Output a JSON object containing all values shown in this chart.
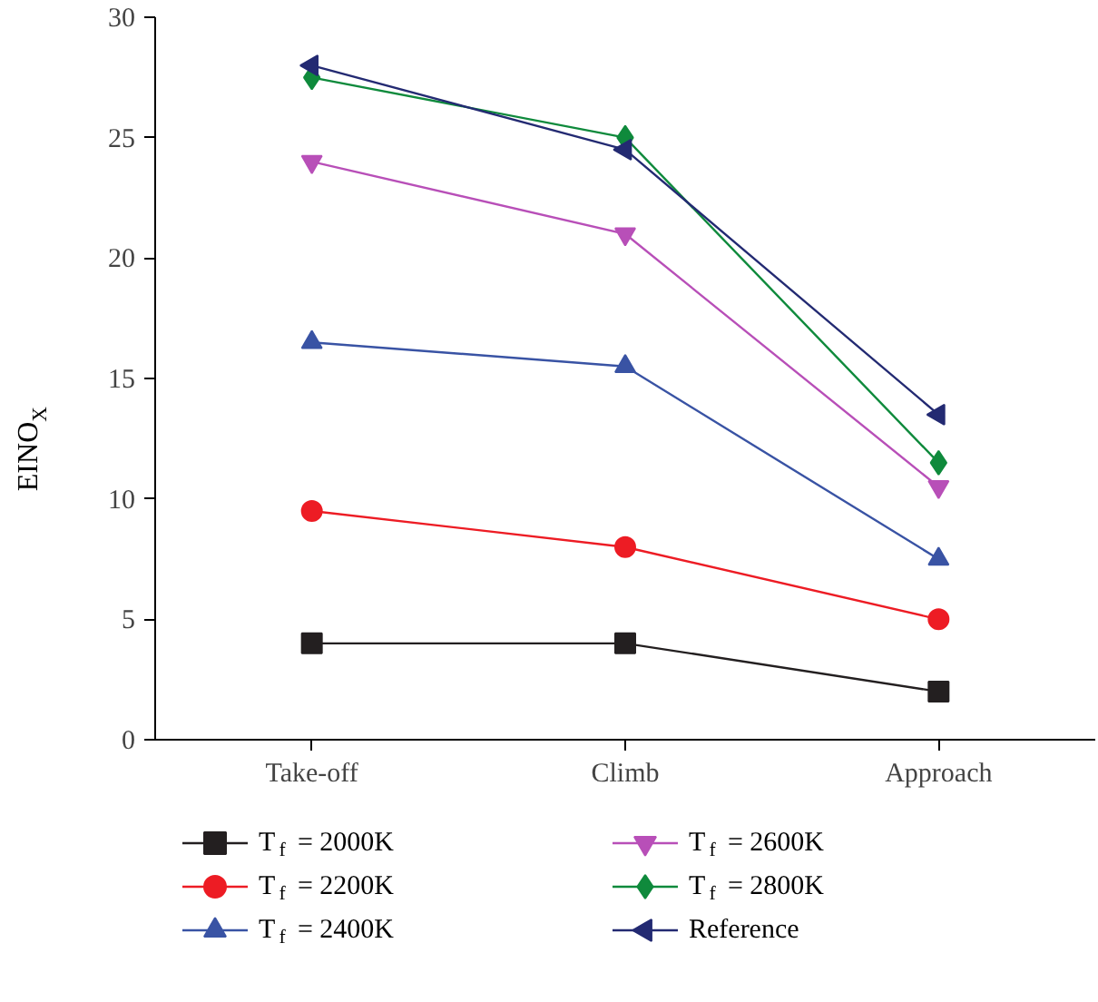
{
  "chart_data": {
    "type": "line",
    "ylabel": "EINO$_{X}$",
    "categories": [
      "Take-off",
      "Climb",
      "Approach"
    ],
    "ylim": [
      0,
      30
    ],
    "yticks": [
      0,
      5,
      10,
      15,
      20,
      25,
      30
    ],
    "grid": false,
    "legend": "bottom",
    "line_style": "solid",
    "series": [
      {
        "name": "T$_{f}$ = 2000K",
        "color": "#231f20",
        "marker": "square",
        "values": [
          4,
          4,
          2
        ]
      },
      {
        "name": "T$_{f}$ = 2200K",
        "color": "#ed1c24",
        "marker": "circle",
        "values": [
          9.5,
          8,
          5
        ]
      },
      {
        "name": "T$_{f}$ = 2400K",
        "color": "#3953a4",
        "marker": "triangle",
        "values": [
          16.5,
          15.5,
          7.5
        ]
      },
      {
        "name": "T$_{f}$ = 2600K",
        "color": "#b84fb8",
        "marker": "triangle_down",
        "values": [
          24,
          21,
          10.5
        ]
      },
      {
        "name": "T$_{f}$ = 2800K",
        "color": "#0f8a3c",
        "marker": "diamond",
        "values": [
          27.5,
          25,
          11.5
        ]
      },
      {
        "name": "Reference",
        "color": "#232a72",
        "marker": "triangle_left",
        "values": [
          28,
          24.5,
          13.5
        ]
      }
    ]
  }
}
